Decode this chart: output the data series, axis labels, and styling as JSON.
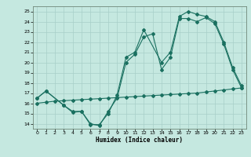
{
  "xlabel": "Humidex (Indice chaleur)",
  "bg_color": "#c5e8e0",
  "grid_color": "#a8cfc8",
  "line_color": "#1a7060",
  "xlim": [
    -0.5,
    23.5
  ],
  "ylim": [
    13.5,
    25.5
  ],
  "xticks": [
    0,
    1,
    2,
    3,
    4,
    5,
    6,
    7,
    8,
    9,
    10,
    11,
    12,
    13,
    14,
    15,
    16,
    17,
    18,
    19,
    20,
    21,
    22,
    23
  ],
  "yticks": [
    14,
    15,
    16,
    17,
    18,
    19,
    20,
    21,
    22,
    23,
    24,
    25
  ],
  "line1_x": [
    0,
    1,
    3,
    4,
    5,
    6,
    7,
    8,
    9,
    10,
    11,
    12,
    13,
    14,
    15,
    16,
    17,
    18,
    19,
    20,
    21,
    22,
    23
  ],
  "line1_y": [
    16.5,
    17.2,
    15.8,
    15.2,
    15.2,
    14.0,
    13.8,
    15.2,
    16.5,
    20.0,
    20.8,
    22.5,
    22.8,
    19.3,
    20.5,
    24.3,
    24.3,
    24.0,
    24.4,
    23.8,
    21.8,
    19.3,
    17.5
  ],
  "line2_x": [
    0,
    1,
    3,
    4,
    5,
    6,
    7,
    8,
    9,
    10,
    11,
    12,
    14,
    15,
    16,
    17,
    18,
    19,
    20,
    21,
    22,
    23
  ],
  "line2_y": [
    16.5,
    17.2,
    15.8,
    15.1,
    15.2,
    13.9,
    13.9,
    15.0,
    16.8,
    20.5,
    21.0,
    23.2,
    20.0,
    21.0,
    24.5,
    25.0,
    24.7,
    24.5,
    24.0,
    22.0,
    19.5,
    17.7
  ],
  "line3_x": [
    0,
    1,
    2,
    3,
    4,
    5,
    6,
    7,
    8,
    9,
    10,
    11,
    12,
    13,
    14,
    15,
    16,
    17,
    18,
    19,
    20,
    21,
    22,
    23
  ],
  "line3_y": [
    16.0,
    16.1,
    16.2,
    16.25,
    16.3,
    16.35,
    16.4,
    16.45,
    16.5,
    16.55,
    16.6,
    16.65,
    16.7,
    16.75,
    16.8,
    16.85,
    16.9,
    16.95,
    17.0,
    17.1,
    17.2,
    17.3,
    17.4,
    17.5
  ]
}
